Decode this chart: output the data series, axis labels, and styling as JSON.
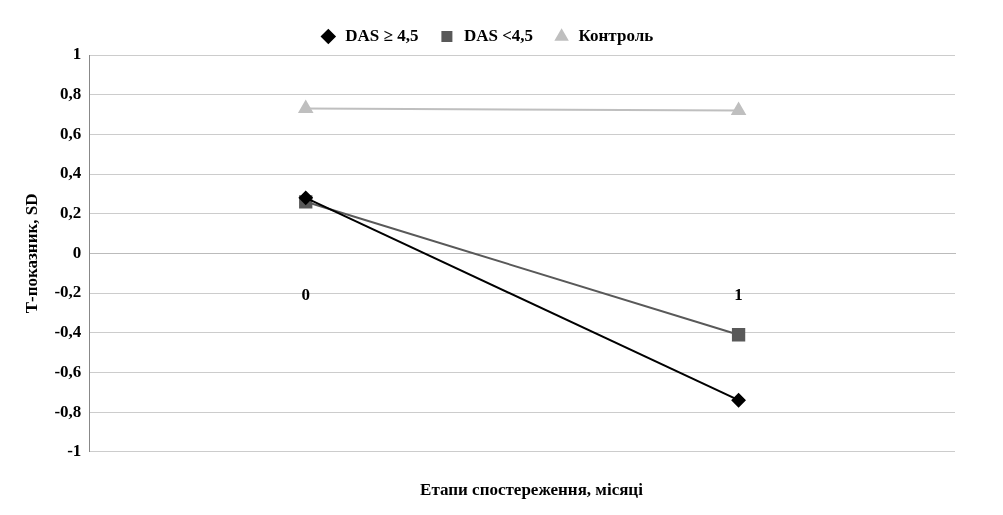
{
  "chart_data": {
    "type": "line",
    "xlabel": "Етапи спостереження, місяці",
    "ylabel": "Т-показник, SD",
    "categories": [
      "0",
      "1"
    ],
    "series": [
      {
        "name": "DAS ≥ 4,5",
        "color": "#000000",
        "marker": "diamond",
        "values": [
          0.28,
          -0.74
        ]
      },
      {
        "name": "DAS <4,5",
        "color": "#595959",
        "marker": "square",
        "values": [
          0.26,
          -0.41
        ]
      },
      {
        "name": "Контроль",
        "color": "#bfbfbf",
        "marker": "triangle",
        "values": [
          0.73,
          0.72
        ]
      }
    ],
    "ylim": [
      -1,
      1
    ],
    "yticks": [
      {
        "value": -1,
        "label": "-1"
      },
      {
        "value": -0.8,
        "label": "-0,8"
      },
      {
        "value": -0.6,
        "label": "-0,6"
      },
      {
        "value": -0.4,
        "label": "-0,4"
      },
      {
        "value": -0.2,
        "label": "-0,2"
      },
      {
        "value": 0,
        "label": "0"
      },
      {
        "value": 0.2,
        "label": "0,2"
      },
      {
        "value": 0.4,
        "label": "0,4"
      },
      {
        "value": 0.6,
        "label": "0,6"
      },
      {
        "value": 0.8,
        "label": "0,8"
      },
      {
        "value": 1,
        "label": "1"
      }
    ],
    "grid": "y",
    "legend": "top",
    "line_style": "solid"
  }
}
